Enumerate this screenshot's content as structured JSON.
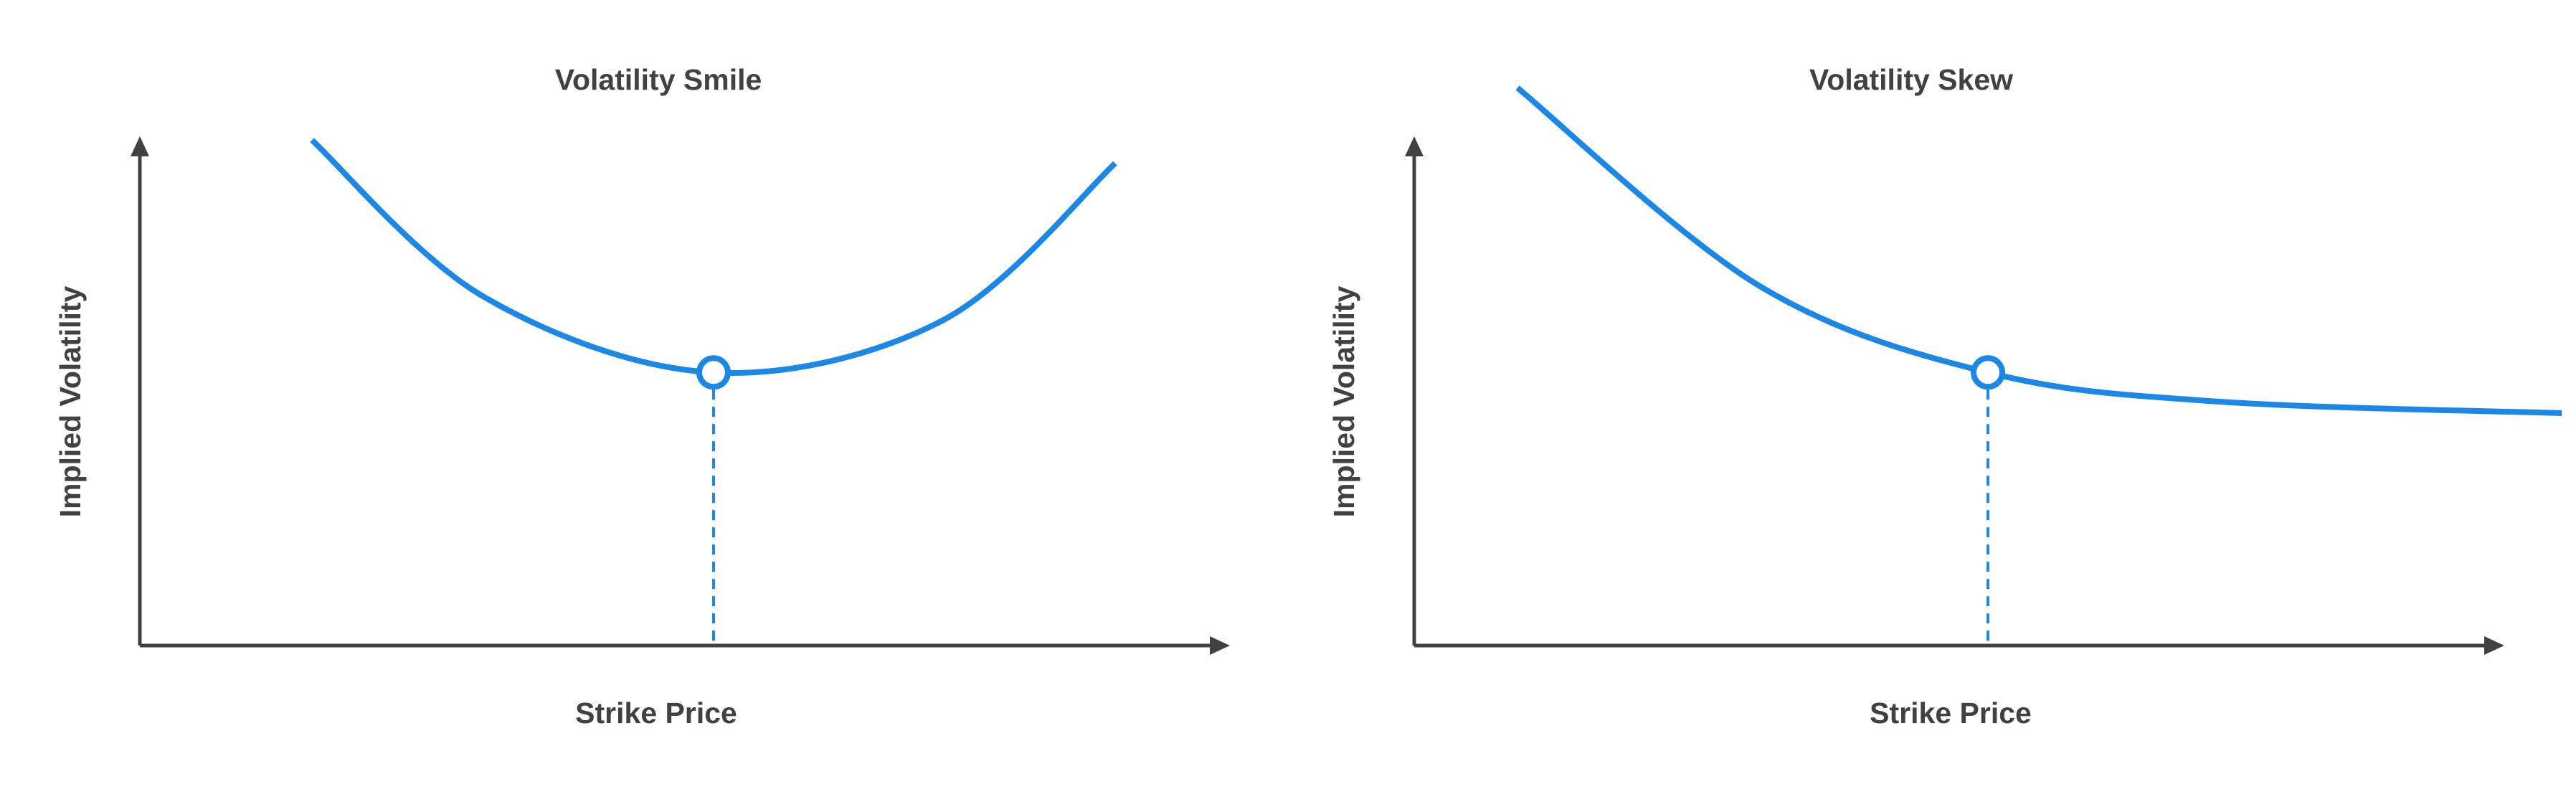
{
  "colors": {
    "curve": "#1b87e6",
    "axis": "#414042",
    "text": "#414042"
  },
  "chart_data": [
    {
      "type": "line",
      "title": "Volatility Smile",
      "xlabel": "Strike Price",
      "ylabel": "Implied Volatility",
      "xlim": [
        0,
        10
      ],
      "ylim": [
        0,
        10
      ],
      "ticks": false,
      "grid": false,
      "series": [
        {
          "x": [
            1.5,
            3,
            5,
            7,
            8.5
          ],
          "y": [
            8.7,
            6.0,
            4.7,
            5.6,
            8.3
          ]
        }
      ],
      "marker": {
        "x": 5,
        "y": 4.7,
        "style": "hollow-circle",
        "dropline": "dashed"
      }
    },
    {
      "type": "line",
      "title": "Volatility Skew",
      "xlabel": "Strike Price",
      "ylabel": "Implied Volatility",
      "xlim": [
        0,
        10
      ],
      "ylim": [
        0,
        10
      ],
      "ticks": false,
      "grid": false,
      "series": [
        {
          "x": [
            0.9,
            3,
            5,
            7,
            10
          ],
          "y": [
            9.6,
            6.2,
            4.7,
            4.2,
            4.0
          ]
        }
      ],
      "marker": {
        "x": 5,
        "y": 4.7,
        "style": "hollow-circle",
        "dropline": "dashed"
      }
    }
  ]
}
